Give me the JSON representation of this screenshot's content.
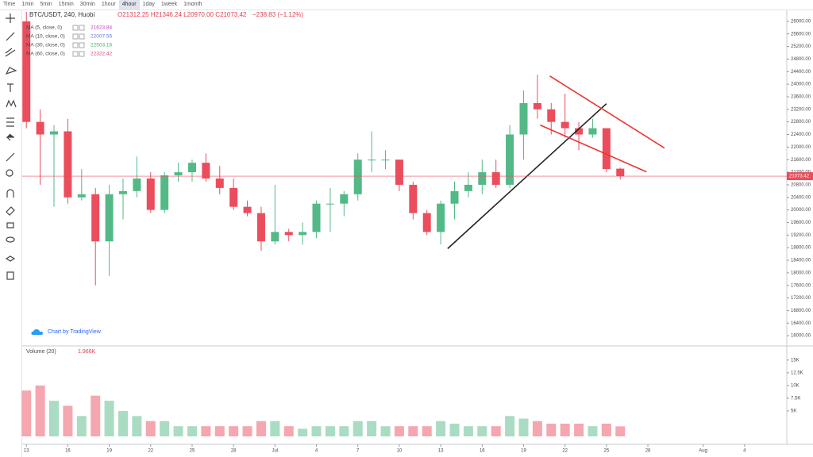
{
  "toolbar": {
    "intervals": [
      "Time",
      "1min",
      "5min",
      "15min",
      "30min",
      "1hour",
      "4hour",
      "1day",
      "1week",
      "1month"
    ],
    "active": 6
  },
  "chart_data": [
    {
      "type": "candlestick",
      "title": "BTC/USDT, 240, Huobi",
      "ohlc": "O21312.25 H21346.24 L20970.00 C21073.42",
      "change": "−238.83 (−1.12%)",
      "watermark": "Chart by TradingView",
      "up_color": "#53b987",
      "down_color": "#eb4d5c",
      "x": [
        0,
        1,
        2,
        3,
        4,
        5,
        6,
        7,
        8,
        9,
        10,
        11,
        12,
        13,
        14,
        15,
        16,
        17,
        18,
        19,
        20,
        21,
        22,
        23,
        24,
        25,
        26,
        27,
        28,
        29,
        30,
        31,
        32,
        33,
        34,
        35,
        36,
        37,
        38,
        39,
        40,
        41,
        42,
        43
      ],
      "open": [
        26000,
        22800,
        22400,
        22500,
        20400,
        20500,
        19000,
        20500,
        20600,
        21000,
        20000,
        21100,
        21200,
        21500,
        21000,
        20700,
        20100,
        19900,
        19000,
        19300,
        19200,
        19300,
        20200,
        20200,
        20500,
        21600,
        21600,
        21600,
        20800,
        19900,
        19300,
        20200,
        20600,
        20800,
        21200,
        20800,
        22400,
        23400,
        23200,
        22800,
        22600,
        22400,
        22600,
        21312.25
      ],
      "high": [
        26300,
        23200,
        22700,
        22900,
        21300,
        20700,
        20800,
        21000,
        21700,
        21200,
        21200,
        21500,
        21600,
        21800,
        21400,
        21000,
        20300,
        20100,
        20800,
        19400,
        19600,
        20300,
        20700,
        20600,
        21800,
        22500,
        21900,
        21600,
        20900,
        20000,
        20300,
        20900,
        21200,
        21600,
        21600,
        22700,
        23800,
        24300,
        23400,
        23700,
        22800,
        22900,
        22600,
        21346.24
      ],
      "low": [
        22600,
        20800,
        20100,
        20200,
        20300,
        17600,
        17900,
        19700,
        20400,
        19900,
        19900,
        20900,
        20900,
        20900,
        20500,
        20000,
        19800,
        18700,
        18900,
        19000,
        18900,
        19100,
        19300,
        19800,
        20300,
        21200,
        21300,
        20600,
        19700,
        19200,
        18900,
        19700,
        20400,
        20500,
        20700,
        20700,
        21600,
        22900,
        22400,
        22300,
        21900,
        22300,
        21200,
        20970
      ],
      "close": [
        22800,
        22400,
        22500,
        20400,
        20500,
        19000,
        20500,
        20600,
        21000,
        20000,
        21100,
        21200,
        21500,
        21000,
        20700,
        20100,
        19900,
        19000,
        19300,
        19200,
        19300,
        20200,
        20200,
        20500,
        21600,
        21600,
        21600,
        20800,
        19900,
        19300,
        20200,
        20600,
        20800,
        21200,
        20800,
        22400,
        23400,
        23200,
        22800,
        22600,
        22400,
        22600,
        21300,
        21073.42
      ],
      "series": [
        {
          "name": "MA (5, close, 0)",
          "color": "#c040c0",
          "last": 21623.84
        },
        {
          "name": "MA (10, close, 0)",
          "color": "#5b7fe0",
          "last": 22007.56
        },
        {
          "name": "MA (30, close, 0)",
          "color": "#3cb36a",
          "last": 22503.16
        },
        {
          "name": "MA (60, close, 0)",
          "color": "#e0407a",
          "last": 22322.42
        }
      ],
      "last_price": {
        "value": 21073.42,
        "label": "21073.42"
      },
      "trendlines": [
        {
          "color": "#222222",
          "x": [
            30.5,
            42
          ],
          "y": [
            18770,
            23380
          ]
        },
        {
          "color": "#ee3333",
          "x": [
            37.9,
            46.2
          ],
          "y": [
            24260,
            21970
          ]
        },
        {
          "color": "#ee3333",
          "x": [
            37.2,
            44.9
          ],
          "y": [
            22700,
            21210
          ]
        }
      ],
      "xlim": [
        -0.3,
        55
      ],
      "xticks": [
        {
          "value": 0,
          "label": "13"
        },
        {
          "value": 3,
          "label": "16"
        },
        {
          "value": 6,
          "label": "19"
        },
        {
          "value": 9,
          "label": "22"
        },
        {
          "value": 12,
          "label": "25"
        },
        {
          "value": 15,
          "label": "28"
        },
        {
          "value": 18,
          "label": "Jul"
        },
        {
          "value": 21,
          "label": "4"
        },
        {
          "value": 24,
          "label": "7"
        },
        {
          "value": 27,
          "label": "10"
        },
        {
          "value": 30,
          "label": "13"
        },
        {
          "value": 33,
          "label": "16"
        },
        {
          "value": 36,
          "label": "19"
        },
        {
          "value": 39,
          "label": "22"
        },
        {
          "value": 42,
          "label": "25"
        },
        {
          "value": 45,
          "label": "28"
        },
        {
          "value": 49,
          "label": "Aug"
        },
        {
          "value": 52,
          "label": "4"
        }
      ],
      "ylim": [
        15700,
        26350
      ],
      "yticks": [
        {
          "value": 26000,
          "label": "26000.00"
        },
        {
          "value": 25600,
          "label": "25600.00"
        },
        {
          "value": 25200,
          "label": "25200.00"
        },
        {
          "value": 24800,
          "label": "24800.00"
        },
        {
          "value": 24400,
          "label": "24400.00"
        },
        {
          "value": 24000,
          "label": "24000.00"
        },
        {
          "value": 23600,
          "label": "23600.00"
        },
        {
          "value": 23200,
          "label": "23200.00"
        },
        {
          "value": 22800,
          "label": "22800.00"
        },
        {
          "value": 22400,
          "label": "22400.00"
        },
        {
          "value": 22000,
          "label": "22000.00"
        },
        {
          "value": 21600,
          "label": "21600.00"
        },
        {
          "value": 21200,
          "label": "21200.00"
        },
        {
          "value": 20800,
          "label": "20800.00"
        },
        {
          "value": 20400,
          "label": "20400.00"
        },
        {
          "value": 20000,
          "label": "20000.00"
        },
        {
          "value": 19600,
          "label": "19600.00"
        },
        {
          "value": 19200,
          "label": "19200.00"
        },
        {
          "value": 18800,
          "label": "18800.00"
        },
        {
          "value": 18400,
          "label": "18400.00"
        },
        {
          "value": 18000,
          "label": "18000.00"
        },
        {
          "value": 17600,
          "label": "17600.00"
        },
        {
          "value": 17200,
          "label": "17200.00"
        },
        {
          "value": 16800,
          "label": "16800.00"
        },
        {
          "value": 16400,
          "label": "16400.00"
        },
        {
          "value": 16000,
          "label": "16000.00"
        }
      ]
    },
    {
      "type": "bar",
      "title": "Volume (20)",
      "last": {
        "value": 1966,
        "label": "1.966K"
      },
      "up_color": "#a9dcc3",
      "down_color": "#f5a6ae",
      "x": [
        0,
        1,
        2,
        3,
        4,
        5,
        6,
        7,
        8,
        9,
        10,
        11,
        12,
        13,
        14,
        15,
        16,
        17,
        18,
        19,
        20,
        21,
        22,
        23,
        24,
        25,
        26,
        27,
        28,
        29,
        30,
        31,
        32,
        33,
        34,
        35,
        36,
        37,
        38,
        39,
        40,
        41,
        42,
        43
      ],
      "values": [
        9000,
        10000,
        7000,
        6000,
        4000,
        8000,
        7000,
        5000,
        4000,
        3000,
        3000,
        2000,
        2000,
        2000,
        2000,
        2000,
        2000,
        3000,
        3000,
        2000,
        1500,
        2000,
        2000,
        2000,
        3000,
        3000,
        2000,
        2000,
        2000,
        2000,
        3000,
        2500,
        2000,
        2000,
        2000,
        4000,
        3500,
        3000,
        2500,
        2500,
        2500,
        2000,
        2500,
        1966
      ],
      "ylim": [
        0,
        17000
      ],
      "yticks": [
        {
          "value": 15000,
          "label": "15K"
        },
        {
          "value": 12500,
          "label": "12.5K"
        },
        {
          "value": 10000,
          "label": "10K"
        },
        {
          "value": 7500,
          "label": "7.5K"
        },
        {
          "value": 5000,
          "label": "5K"
        }
      ]
    }
  ]
}
